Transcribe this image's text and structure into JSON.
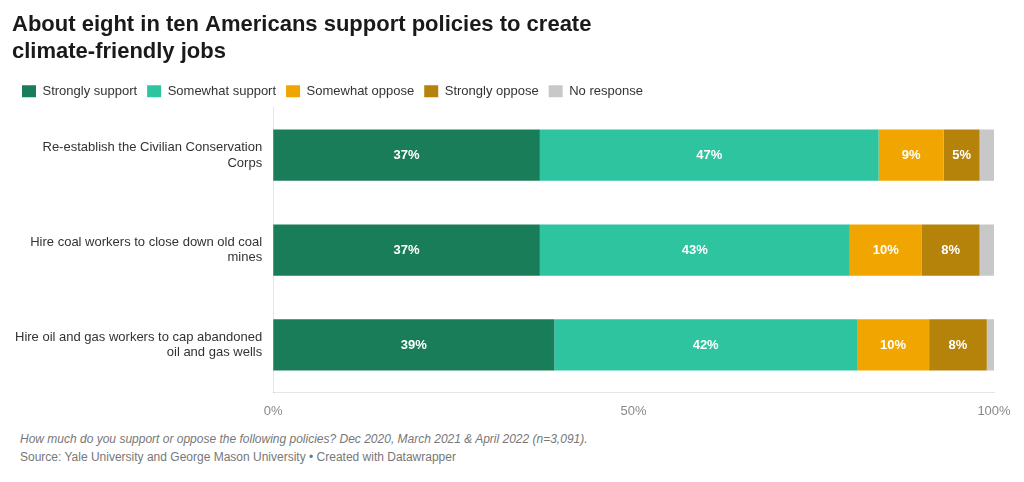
{
  "chart_data": {
    "type": "bar",
    "orientation": "horizontal",
    "stacked": true,
    "title": "About eight in ten Americans support policies to create\nclimate-friendly jobs",
    "categories": [
      "Re-establish the Civilian Conservation\nCorps",
      "Hire coal workers to close down old coal\nmines",
      "Hire oil and gas workers to cap abandoned\noil and gas wells"
    ],
    "series": [
      {
        "name": "Strongly support",
        "color": "#1a7d5a",
        "values": [
          37,
          37,
          39
        ],
        "value_labels": [
          "37%",
          "37%",
          "39%"
        ]
      },
      {
        "name": "Somewhat support",
        "color": "#2ec4a0",
        "values": [
          47,
          43,
          42
        ],
        "value_labels": [
          "47%",
          "43%",
          "42%"
        ]
      },
      {
        "name": "Somewhat oppose",
        "color": "#f0a500",
        "values": [
          9,
          10,
          10
        ],
        "value_labels": [
          "9%",
          "10%",
          "10%"
        ]
      },
      {
        "name": "Strongly oppose",
        "color": "#b5820a",
        "values": [
          5,
          8,
          8
        ],
        "value_labels": [
          "5%",
          "8%",
          "8%"
        ]
      },
      {
        "name": "No response",
        "color": "#c8c8c8",
        "values": [
          2,
          2,
          1
        ],
        "value_labels": [
          null,
          null,
          null
        ]
      }
    ],
    "xlim": [
      0,
      100
    ],
    "xticks": [
      {
        "value": 0,
        "label": "0%"
      },
      {
        "value": 50,
        "label": "50%"
      },
      {
        "value": 100,
        "label": "100%"
      }
    ],
    "grid": false,
    "legend": "top-left",
    "data_labels": true,
    "annotations": [
      "How much do you support or oppose the following policies? Dec 2020, March 2021 & April 2022 (n=3,091).",
      "Source: Yale University and George Mason University • Created with Datawrapper"
    ]
  }
}
